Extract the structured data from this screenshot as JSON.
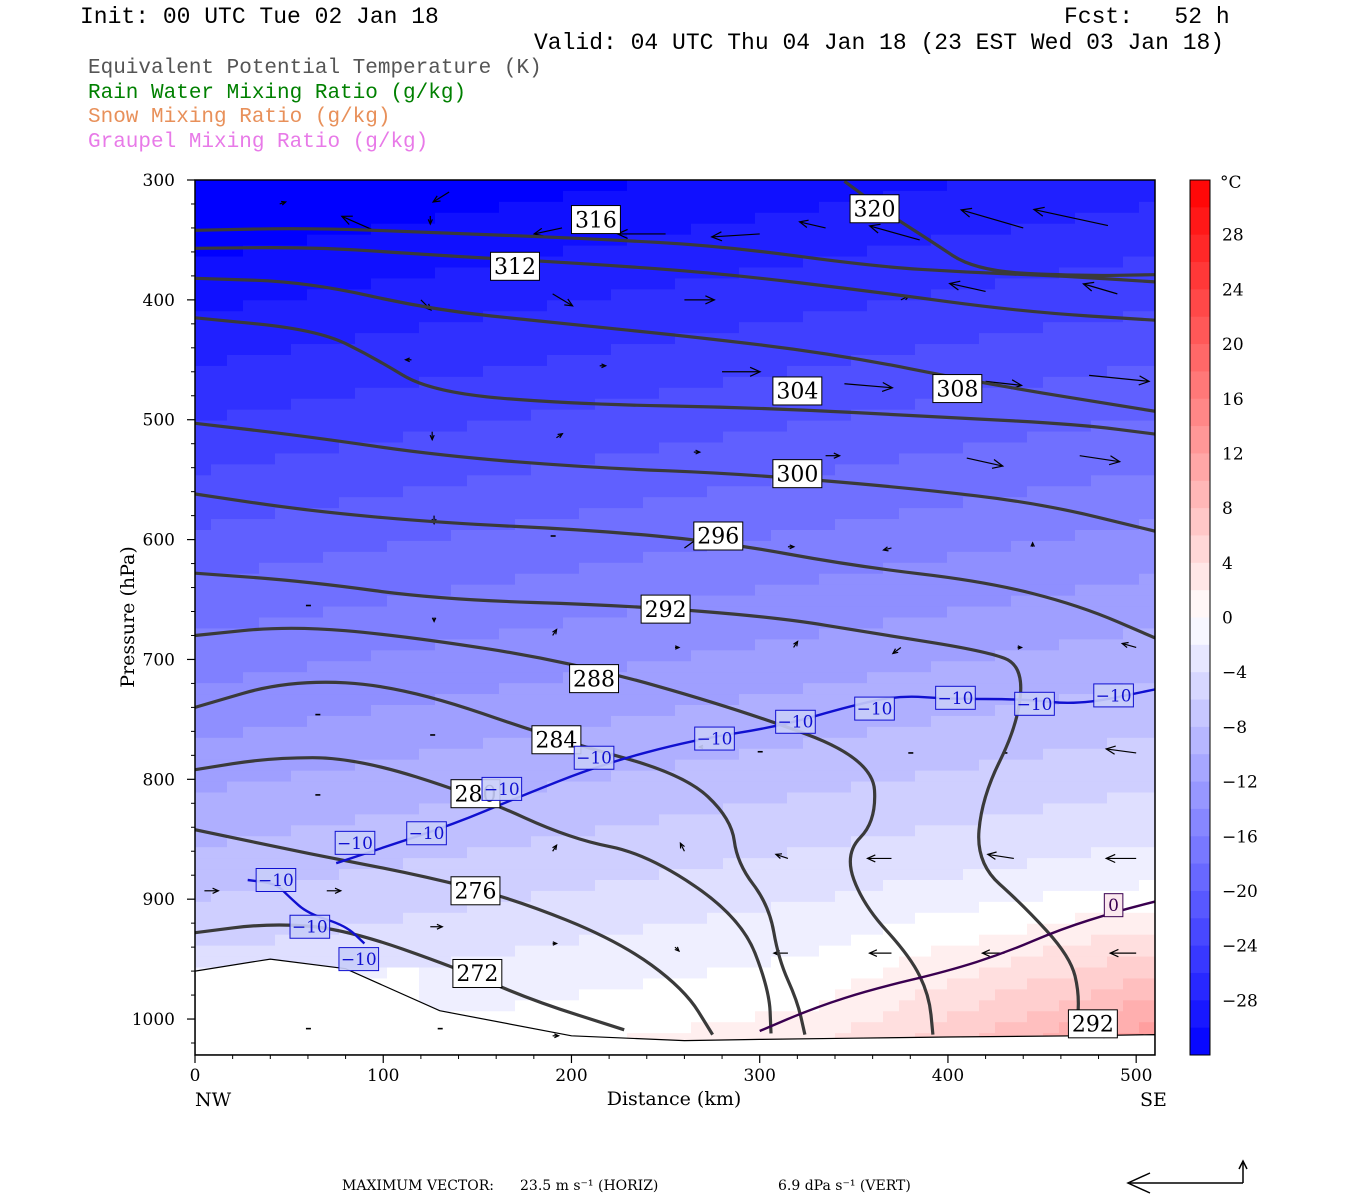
{
  "header": {
    "init": "Init: 00 UTC Tue 02 Jan 18",
    "fcst": "Fcst:   52 h",
    "valid": "Valid: 04 UTC Thu 04 Jan 18 (23 EST Wed 03 Jan 18)"
  },
  "legend": [
    {
      "text": "Equivalent Potential Temperature (K)",
      "color": "#555555"
    },
    {
      "text": "Rain Water Mixing Ratio (g/kg)",
      "color": "#008000"
    },
    {
      "text": "Snow Mixing Ratio (g/kg)",
      "color": "#e8905a"
    },
    {
      "text": "Graupel Mixing Ratio (g/kg)",
      "color": "#e87ae8"
    }
  ],
  "footer": {
    "max_label": "MAXIMUM VECTOR:",
    "horiz": "23.5 m s⁻¹ (HORIZ)",
    "vert": "6.9 dPa s⁻¹ (VERT)"
  },
  "chart_data": {
    "type": "cross-section",
    "xlabel": "Distance (km)",
    "ylabel": "Pressure (hPa)",
    "x_ticks": [
      0,
      100,
      200,
      300,
      400,
      500
    ],
    "y_ticks": [
      300,
      400,
      500,
      600,
      700,
      800,
      900,
      1000
    ],
    "xlim": [
      0,
      510
    ],
    "ylim_hpa": [
      300,
      1030
    ],
    "y_scale": "linear (inverted)",
    "x_endpoints": [
      "NW",
      "SE"
    ],
    "colorbar": {
      "unit": "°C",
      "tick_labels": [
        "28",
        "24",
        "20",
        "16",
        "12",
        "8",
        "4",
        "0",
        "−4",
        "−8",
        "−12",
        "−16",
        "−20",
        "−24",
        "−28"
      ],
      "tick_values": [
        28,
        24,
        20,
        16,
        12,
        8,
        4,
        0,
        -4,
        -8,
        -12,
        -16,
        -20,
        -24,
        -28
      ],
      "range": [
        -32,
        32
      ],
      "cold_color": "#0000ff",
      "zero_color": "#ffffff",
      "warm_color": "#ff0000"
    },
    "theta_e_contours": [
      {
        "level": "272",
        "label_x": 150,
        "label_p": 962,
        "points": [
          [
            0,
            928
          ],
          [
            40,
            920
          ],
          [
            80,
            925
          ],
          [
            140,
            958
          ],
          [
            180,
            985
          ],
          [
            228,
            1009
          ]
        ]
      },
      {
        "level": "276",
        "label_x": 149,
        "label_p": 893,
        "points": [
          [
            0,
            842
          ],
          [
            60,
            862
          ],
          [
            120,
            880
          ],
          [
            170,
            900
          ],
          [
            225,
            935
          ],
          [
            260,
            975
          ],
          [
            275,
            1013
          ]
        ]
      },
      {
        "level": "280",
        "label_x": 149,
        "label_p": 812,
        "points": [
          [
            0,
            792
          ],
          [
            40,
            782
          ],
          [
            85,
            782
          ],
          [
            150,
            814
          ],
          [
            200,
            850
          ],
          [
            240,
            862
          ],
          [
            290,
            915
          ],
          [
            305,
            975
          ],
          [
            306,
            1012
          ]
        ]
      },
      {
        "level": "284",
        "label_x": 192,
        "label_p": 767,
        "points": [
          [
            0,
            740
          ],
          [
            50,
            717
          ],
          [
            110,
            722
          ],
          [
            195,
            768
          ],
          [
            260,
            796
          ],
          [
            285,
            833
          ],
          [
            288,
            870
          ],
          [
            305,
            905
          ],
          [
            310,
            950
          ],
          [
            320,
            985
          ],
          [
            324,
            1013
          ]
        ]
      },
      {
        "level": "288",
        "label_x": 212,
        "label_p": 716,
        "points": [
          [
            0,
            680
          ],
          [
            50,
            672
          ],
          [
            110,
            680
          ],
          [
            200,
            702
          ],
          [
            290,
            742
          ],
          [
            360,
            783
          ],
          [
            362,
            835
          ],
          [
            345,
            862
          ],
          [
            355,
            905
          ],
          [
            380,
            948
          ],
          [
            390,
            980
          ],
          [
            392,
            1013
          ]
        ]
      },
      {
        "level": "292",
        "label_x": 250,
        "label_p": 658,
        "points": [
          [
            0,
            628
          ],
          [
            60,
            635
          ],
          [
            130,
            650
          ],
          [
            230,
            655
          ],
          [
            310,
            665
          ],
          [
            360,
            678
          ],
          [
            420,
            693
          ],
          [
            440,
            705
          ],
          [
            437,
            755
          ],
          [
            418,
            815
          ],
          [
            415,
            870
          ],
          [
            440,
            905
          ],
          [
            465,
            948
          ],
          [
            470,
            980
          ],
          [
            468,
            1013
          ]
        ]
      },
      {
        "level": "296",
        "label_x": 278,
        "label_p": 597,
        "points": [
          [
            0,
            562
          ],
          [
            60,
            576
          ],
          [
            130,
            586
          ],
          [
            210,
            592
          ],
          [
            280,
            602
          ],
          [
            350,
            622
          ],
          [
            420,
            635
          ],
          [
            470,
            655
          ],
          [
            510,
            682
          ]
        ]
      },
      {
        "level": "300",
        "label_x": 320,
        "label_p": 545,
        "points": [
          [
            0,
            503
          ],
          [
            60,
            514
          ],
          [
            130,
            530
          ],
          [
            210,
            540
          ],
          [
            290,
            545
          ],
          [
            380,
            557
          ],
          [
            450,
            570
          ],
          [
            510,
            593
          ]
        ]
      },
      {
        "level": "304",
        "label_x": 320,
        "label_p": 476,
        "points": [
          [
            0,
            415
          ],
          [
            65,
            425
          ],
          [
            95,
            448
          ],
          [
            125,
            477
          ],
          [
            200,
            487
          ],
          [
            300,
            490
          ],
          [
            400,
            498
          ],
          [
            470,
            504
          ],
          [
            510,
            512
          ]
        ]
      },
      {
        "level": "308",
        "label_x": 405,
        "label_p": 474,
        "points": [
          [
            0,
            382
          ],
          [
            60,
            385
          ],
          [
            125,
            408
          ],
          [
            190,
            419
          ],
          [
            260,
            430
          ],
          [
            340,
            445
          ],
          [
            420,
            470
          ],
          [
            510,
            493
          ]
        ]
      },
      {
        "level": "312",
        "label_x": 170,
        "label_p": 372,
        "points": [
          [
            0,
            357
          ],
          [
            65,
            356
          ],
          [
            130,
            363
          ],
          [
            210,
            370
          ],
          [
            280,
            378
          ],
          [
            360,
            393
          ],
          [
            440,
            410
          ],
          [
            510,
            417
          ]
        ]
      },
      {
        "level": "316",
        "label_x": 213,
        "label_p": 333,
        "points": [
          [
            0,
            342
          ],
          [
            60,
            340
          ],
          [
            130,
            344
          ],
          [
            210,
            349
          ],
          [
            280,
            355
          ],
          [
            360,
            372
          ],
          [
            410,
            377
          ],
          [
            460,
            380
          ],
          [
            510,
            385
          ]
        ]
      },
      {
        "level": "320",
        "label_x": 361,
        "label_p": 324,
        "points": [
          [
            345,
            301
          ],
          [
            370,
            330
          ],
          [
            390,
            350
          ],
          [
            415,
            376
          ],
          [
            470,
            380
          ],
          [
            510,
            379
          ]
        ]
      }
    ],
    "temperature_minus10_line": {
      "points": [
        [
          28,
          884
        ],
        [
          43,
          887
        ],
        [
          50,
          898
        ],
        [
          60,
          912
        ],
        [
          80,
          922
        ],
        [
          90,
          937
        ]
      ],
      "points_upper": [
        [
          75,
          870
        ],
        [
          98,
          858
        ],
        [
          138,
          837
        ],
        [
          170,
          816
        ],
        [
          215,
          788
        ],
        [
          265,
          767
        ],
        [
          310,
          756
        ],
        [
          350,
          738
        ],
        [
          375,
          730
        ],
        [
          400,
          733
        ],
        [
          440,
          733
        ],
        [
          470,
          738
        ],
        [
          510,
          725
        ]
      ],
      "labels": [
        {
          "text": "−10",
          "x": 43,
          "p": 884
        },
        {
          "text": "−10",
          "x": 61,
          "p": 923
        },
        {
          "text": "−10",
          "x": 87,
          "p": 950
        },
        {
          "text": "−10",
          "x": 85,
          "p": 853
        },
        {
          "text": "−10",
          "x": 123,
          "p": 845
        },
        {
          "text": "−10",
          "x": 163,
          "p": 808
        },
        {
          "text": "−10",
          "x": 212,
          "p": 782
        },
        {
          "text": "−10",
          "x": 276,
          "p": 766
        },
        {
          "text": "−10",
          "x": 319,
          "p": 752
        },
        {
          "text": "−10",
          "x": 361,
          "p": 741
        },
        {
          "text": "−10",
          "x": 404,
          "p": 732
        },
        {
          "text": "−10",
          "x": 446,
          "p": 737
        },
        {
          "text": "−10",
          "x": 488,
          "p": 730
        }
      ]
    },
    "zero_isotherm": {
      "label": "0",
      "label_x": 488,
      "label_p": 905,
      "points": [
        [
          300,
          1010
        ],
        [
          330,
          990
        ],
        [
          360,
          975
        ],
        [
          400,
          960
        ],
        [
          430,
          945
        ],
        [
          460,
          925
        ],
        [
          490,
          910
        ],
        [
          510,
          902
        ]
      ]
    },
    "theta_e_extra_label": {
      "text": "292",
      "x": 477,
      "p": 1004
    },
    "terrain_pressure": [
      [
        0,
        960
      ],
      [
        40,
        950
      ],
      [
        80,
        958
      ],
      [
        130,
        993
      ],
      [
        200,
        1014
      ],
      [
        260,
        1018
      ],
      [
        300,
        1017
      ],
      [
        350,
        1016
      ],
      [
        400,
        1015
      ],
      [
        470,
        1014
      ],
      [
        510,
        1013
      ]
    ],
    "wind_vectors": [
      [
        95,
        342,
        -32,
        -14
      ],
      [
        45,
        320,
        6,
        -2
      ],
      [
        125,
        330,
        0,
        8
      ],
      [
        135,
        310,
        -16,
        10
      ],
      [
        195,
        340,
        -28,
        6
      ],
      [
        250,
        345,
        -48,
        0
      ],
      [
        300,
        345,
        -48,
        3
      ],
      [
        335,
        340,
        -26,
        -6
      ],
      [
        385,
        350,
        -50,
        -14
      ],
      [
        440,
        340,
        -62,
        -18
      ],
      [
        485,
        338,
        -74,
        -16
      ],
      [
        190,
        395,
        20,
        12
      ],
      [
        260,
        400,
        30,
        0
      ],
      [
        375,
        400,
        8,
        -4
      ],
      [
        420,
        393,
        -36,
        -8
      ],
      [
        490,
        395,
        -34,
        -10
      ],
      [
        120,
        400,
        10,
        10
      ],
      [
        115,
        450,
        -6,
        0
      ],
      [
        215,
        455,
        6,
        0
      ],
      [
        280,
        460,
        38,
        0
      ],
      [
        345,
        470,
        48,
        4
      ],
      [
        420,
        468,
        36,
        4
      ],
      [
        475,
        463,
        60,
        6
      ],
      [
        126,
        510,
        0,
        8
      ],
      [
        192,
        515,
        6,
        -4
      ],
      [
        265,
        527,
        6,
        0
      ],
      [
        335,
        530,
        14,
        0
      ],
      [
        410,
        532,
        36,
        8
      ],
      [
        470,
        530,
        40,
        6
      ],
      [
        127,
        580,
        0,
        8
      ],
      [
        190,
        597,
        0,
        0
      ],
      [
        260,
        607,
        14,
        -10
      ],
      [
        315,
        606,
        6,
        0
      ],
      [
        370,
        607,
        -8,
        2
      ],
      [
        445,
        606,
        0,
        -4
      ],
      [
        60,
        655,
        0,
        0
      ],
      [
        127,
        665,
        0,
        4
      ],
      [
        190,
        680,
        4,
        -6
      ],
      [
        255,
        690,
        4,
        0
      ],
      [
        318,
        690,
        4,
        -6
      ],
      [
        375,
        690,
        -8,
        6
      ],
      [
        437,
        690,
        4,
        0
      ],
      [
        500,
        690,
        -14,
        -4
      ],
      [
        65,
        746,
        0,
        0
      ],
      [
        126,
        763,
        0,
        0
      ],
      [
        270,
        773,
        -4,
        0
      ],
      [
        300,
        777,
        0,
        0
      ],
      [
        380,
        778,
        0,
        0
      ],
      [
        430,
        778,
        0,
        0
      ],
      [
        500,
        778,
        -30,
        -4
      ],
      [
        65,
        813,
        0,
        0
      ],
      [
        190,
        860,
        4,
        -6
      ],
      [
        260,
        860,
        -4,
        -8
      ],
      [
        315,
        866,
        -12,
        -4
      ],
      [
        370,
        866,
        -24,
        0
      ],
      [
        435,
        866,
        -26,
        -4
      ],
      [
        500,
        866,
        -30,
        0
      ],
      [
        5,
        893,
        14,
        0
      ],
      [
        70,
        893,
        14,
        0
      ],
      [
        125,
        923,
        12,
        0
      ],
      [
        190,
        937,
        4,
        0
      ],
      [
        255,
        940,
        4,
        4
      ],
      [
        315,
        945,
        -14,
        0
      ],
      [
        370,
        945,
        -22,
        0
      ],
      [
        430,
        945,
        -22,
        0
      ],
      [
        500,
        945,
        -26,
        0
      ],
      [
        60,
        1008,
        0,
        0
      ],
      [
        130,
        1008,
        0,
        0
      ],
      [
        190,
        1014,
        6,
        0
      ],
      [
        490,
        1013,
        -20,
        0
      ]
    ]
  }
}
